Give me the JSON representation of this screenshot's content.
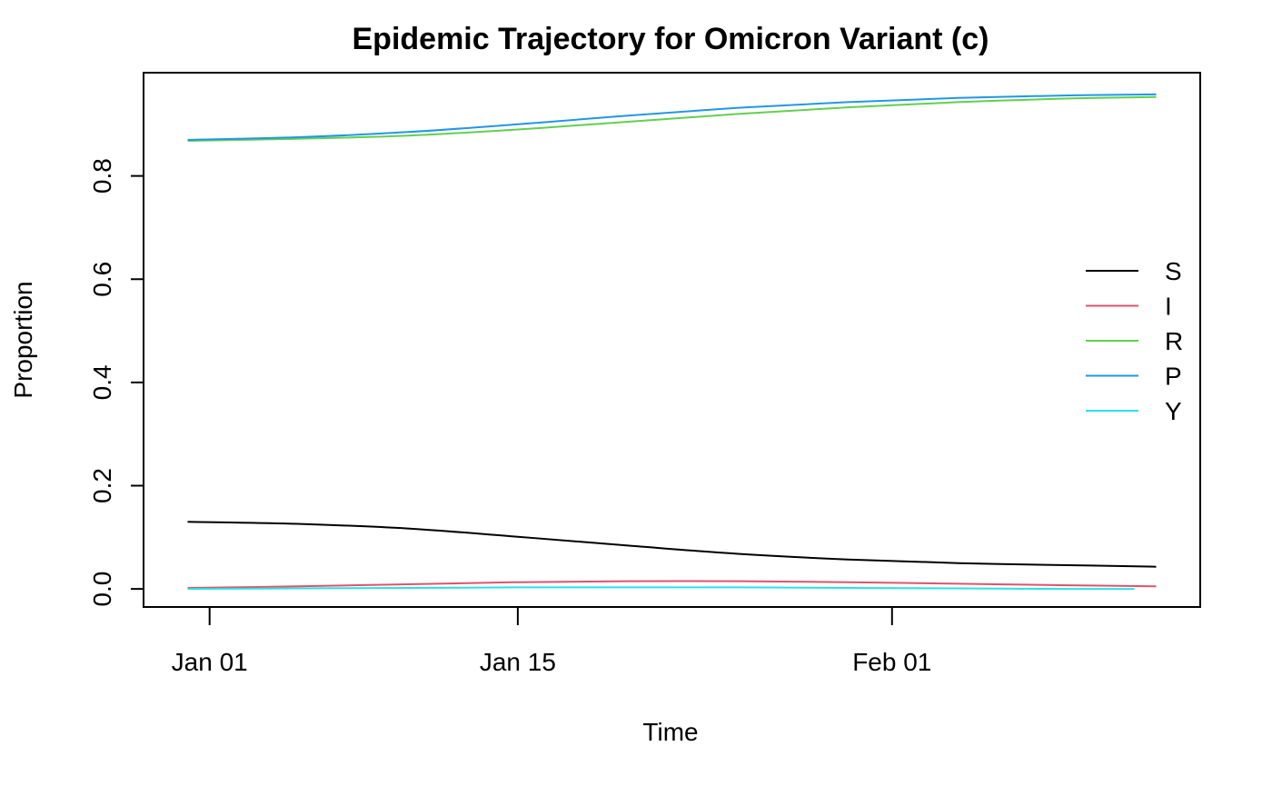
{
  "chart_data": {
    "type": "line",
    "title": "Epidemic Trajectory for Omicron Variant (c)",
    "xlabel": "Time",
    "ylabel": "Proportion",
    "x_ticks": [
      "Jan 01",
      "Jan 15",
      "Feb 01"
    ],
    "y_ticks": [
      "0.0",
      "0.2",
      "0.4",
      "0.6",
      "0.8"
    ],
    "xlim": [
      "2021-12-29",
      "2022-02-15"
    ],
    "ylim": [
      -0.035,
      1.0
    ],
    "grid": false,
    "legend_position": "right",
    "x": [
      "2021-12-31",
      "2022-01-05",
      "2022-01-10",
      "2022-01-15",
      "2022-01-20",
      "2022-01-25",
      "2022-01-30",
      "2022-02-04",
      "2022-02-09",
      "2022-02-13"
    ],
    "series": [
      {
        "name": "S",
        "color": "#000000",
        "values": [
          0.13,
          0.126,
          0.117,
          0.101,
          0.084,
          0.068,
          0.057,
          0.05,
          0.046,
          0.043
        ]
      },
      {
        "name": "I",
        "color": "#DF536B",
        "values": [
          0.002,
          0.005,
          0.009,
          0.013,
          0.015,
          0.015,
          0.013,
          0.01,
          0.007,
          0.005
        ]
      },
      {
        "name": "R",
        "color": "#61D04F",
        "values": [
          0.868,
          0.872,
          0.878,
          0.89,
          0.905,
          0.92,
          0.933,
          0.943,
          0.95,
          0.953
        ]
      },
      {
        "name": "P",
        "color": "#2297E6",
        "values": [
          0.87,
          0.875,
          0.885,
          0.9,
          0.917,
          0.932,
          0.943,
          0.951,
          0.956,
          0.958
        ]
      },
      {
        "name": "Y",
        "color": "#28E2E5",
        "values": [
          0.0,
          0.001,
          0.002,
          0.003,
          0.003,
          0.003,
          0.002,
          0.001,
          0.0,
          0.0
        ]
      }
    ]
  }
}
